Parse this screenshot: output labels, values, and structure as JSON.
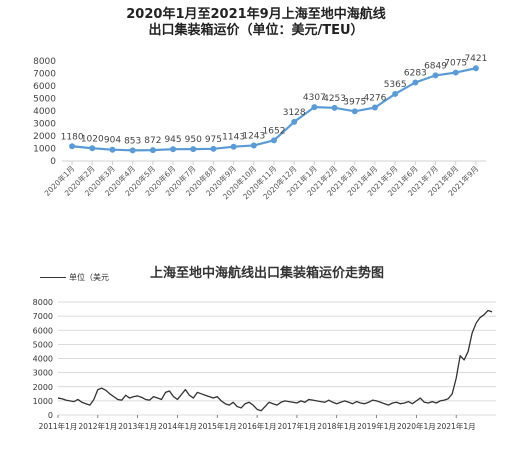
{
  "chart_data": [
    {
      "type": "line",
      "title_line1": "2020年1月至2021年9月上海至地中海航线",
      "title_line2": "出口集装箱运价（单位：美元/TEU）",
      "categories": [
        "2020年1月",
        "2020年2月",
        "2020年3月",
        "2020年4月",
        "2020年5月",
        "2020年6月",
        "2020年7月",
        "2020年8月",
        "2020年9月",
        "2020年10月",
        "2020年11月",
        "2020年12月",
        "2021年1月",
        "2021年2月",
        "2021年3月",
        "2021年4月",
        "2021年5月",
        "2021年6月",
        "2021年7月",
        "2021年8月",
        "2021年9月"
      ],
      "values": [
        1180,
        1020,
        904,
        853,
        872,
        945,
        950,
        975,
        1143,
        1243,
        1652,
        3128,
        4307,
        4253,
        3975,
        4276,
        5365,
        6283,
        6849,
        7075,
        7421
      ],
      "data_labels": [
        "1180",
        "1020",
        "904",
        "853",
        "872",
        "945",
        "950",
        "975",
        "1143",
        "1243",
        "1652",
        "3128",
        "4307",
        "4253",
        "3975",
        "4276",
        "5365",
        "6283",
        "6849",
        "7075",
        "7421"
      ],
      "ylim": [
        0,
        8000
      ],
      "yticks": [
        "0",
        "1000",
        "2000",
        "3000",
        "4000",
        "5000",
        "6000",
        "7000",
        "8000"
      ],
      "grid": false,
      "color": "#5b9bd5"
    },
    {
      "type": "line",
      "title": "上海至地中海航线出口集装箱运价走势图",
      "legend": "单位（美元",
      "xticks": [
        "2011年1月",
        "2012年1月",
        "2013年1月",
        "2014年1月",
        "2015年1月",
        "2016年1月",
        "2017年1月",
        "2018年1月",
        "2019年1月",
        "2020年1月",
        "2021年1月"
      ],
      "yticks": [
        "0",
        "1000",
        "2000",
        "3000",
        "4000",
        "5000",
        "6000",
        "7000",
        "8000"
      ],
      "ylim": [
        0,
        8000
      ],
      "grid": true,
      "color": "#333333",
      "x": [
        2011.0,
        2011.1,
        2011.2,
        2011.3,
        2011.4,
        2011.5,
        2011.6,
        2011.7,
        2011.8,
        2011.9,
        2012.0,
        2012.1,
        2012.2,
        2012.3,
        2012.4,
        2012.5,
        2012.6,
        2012.7,
        2012.8,
        2012.9,
        2013.0,
        2013.1,
        2013.2,
        2013.3,
        2013.4,
        2013.5,
        2013.6,
        2013.7,
        2013.8,
        2013.9,
        2014.0,
        2014.1,
        2014.2,
        2014.3,
        2014.4,
        2014.5,
        2014.6,
        2014.7,
        2014.8,
        2014.9,
        2015.0,
        2015.1,
        2015.2,
        2015.3,
        2015.4,
        2015.5,
        2015.6,
        2015.7,
        2015.8,
        2015.9,
        2016.0,
        2016.1,
        2016.2,
        2016.3,
        2016.4,
        2016.5,
        2016.6,
        2016.7,
        2016.8,
        2016.9,
        2017.0,
        2017.1,
        2017.2,
        2017.3,
        2017.4,
        2017.5,
        2017.6,
        2017.7,
        2017.8,
        2017.9,
        2018.0,
        2018.1,
        2018.2,
        2018.3,
        2018.4,
        2018.5,
        2018.6,
        2018.7,
        2018.8,
        2018.9,
        2019.0,
        2019.1,
        2019.2,
        2019.3,
        2019.4,
        2019.5,
        2019.6,
        2019.7,
        2019.8,
        2019.9,
        2020.0,
        2020.1,
        2020.2,
        2020.3,
        2020.4,
        2020.5,
        2020.6,
        2020.7,
        2020.8,
        2020.9,
        2021.0,
        2021.1,
        2021.2,
        2021.3,
        2021.4,
        2021.5,
        2021.6,
        2021.7,
        2021.8,
        2021.9
      ],
      "y": [
        1200,
        1150,
        1050,
        1000,
        950,
        1100,
        900,
        800,
        700,
        1100,
        1800,
        1900,
        1750,
        1500,
        1300,
        1100,
        1050,
        1400,
        1200,
        1300,
        1350,
        1250,
        1100,
        1050,
        1300,
        1200,
        1100,
        1600,
        1700,
        1300,
        1100,
        1450,
        1800,
        1400,
        1200,
        1600,
        1500,
        1400,
        1300,
        1200,
        1300,
        1000,
        800,
        700,
        900,
        600,
        500,
        800,
        900,
        700,
        400,
        300,
        600,
        900,
        800,
        700,
        900,
        1000,
        950,
        900,
        850,
        1000,
        900,
        1100,
        1050,
        1000,
        950,
        900,
        1050,
        900,
        800,
        900,
        1000,
        900,
        800,
        950,
        850,
        800,
        900,
        1050,
        1000,
        900,
        800,
        700,
        850,
        900,
        800,
        850,
        950,
        800,
        1000,
        1200,
        900,
        850,
        950,
        850,
        1000,
        1050,
        1150,
        1500,
        2600,
        4200,
        3900,
        4500,
        5800,
        6500,
        6900,
        7100,
        7400,
        7300
      ]
    }
  ]
}
